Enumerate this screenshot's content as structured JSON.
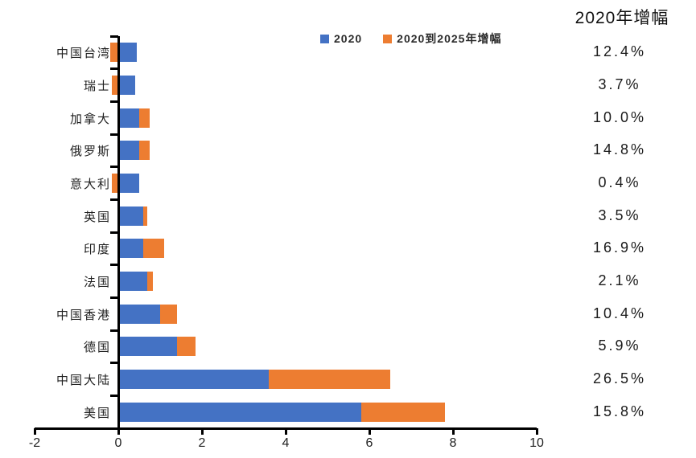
{
  "side_panel": {
    "header": "2020年增幅",
    "values": [
      "12.4%",
      "3.7%",
      "10.0%",
      "14.8%",
      "0.4%",
      "3.5%",
      "16.9%",
      "2.1%",
      "10.4%",
      "5.9%",
      "26.5%",
      "15.8%"
    ]
  },
  "chart_data": {
    "type": "bar",
    "orientation": "horizontal",
    "stacked": true,
    "grid": false,
    "legend_position": "top-center",
    "categories": [
      "中国台湾",
      "瑞士",
      "加拿大",
      "俄罗斯",
      "意大利",
      "英国",
      "印度",
      "法国",
      "中国香港",
      "德国",
      "中国大陆",
      "美国"
    ],
    "series": [
      {
        "name": "2020",
        "color": "#4472C4",
        "values": [
          0.45,
          0.4,
          0.5,
          0.5,
          0.5,
          0.6,
          0.6,
          0.7,
          1.0,
          1.4,
          3.6,
          5.8
        ]
      },
      {
        "name": "2020到2025年增幅",
        "color": "#ED7D31",
        "values": [
          -0.2,
          -0.15,
          0.25,
          0.25,
          -0.15,
          0.1,
          0.5,
          0.12,
          0.4,
          0.45,
          2.9,
          2.0
        ]
      }
    ],
    "xlim": [
      -2,
      10
    ],
    "x_ticks": [
      -2,
      0,
      2,
      4,
      6,
      8,
      10
    ],
    "x_tick_labels": [
      "-2",
      "0",
      "2",
      "4",
      "6",
      "8",
      "10"
    ]
  },
  "colors": {
    "background": "#ffffff",
    "axis": "#000000",
    "text": "#1f1f1f"
  }
}
